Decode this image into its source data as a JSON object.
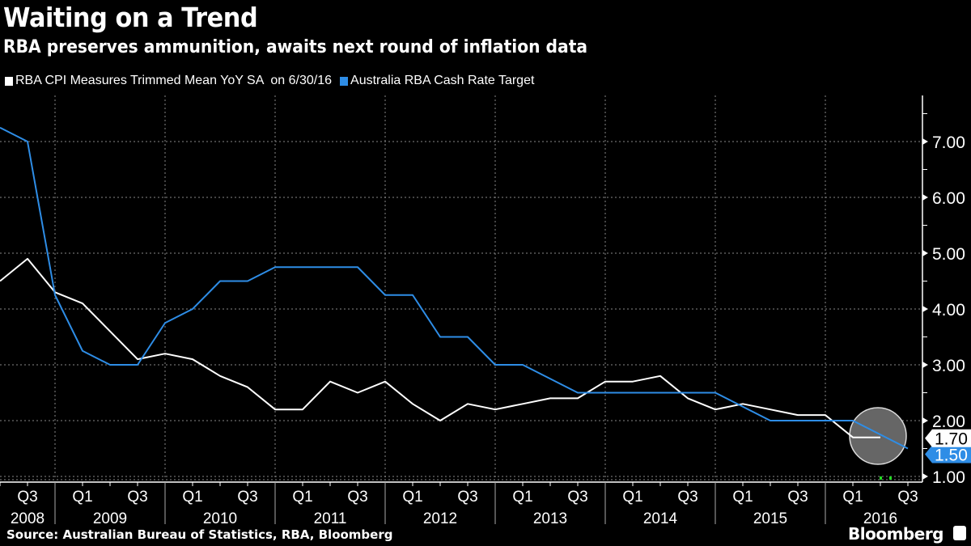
{
  "header": {
    "title": "Waiting on a Trend",
    "subtitle": "RBA preserves ammunition, awaits next round of inflation data"
  },
  "footer": {
    "source": "Source: Australian Bureau of Statistics, RBA, Bloomberg",
    "brand": "Bloomberg"
  },
  "chart_data": {
    "type": "line",
    "title": "Waiting on a Trend",
    "subtitle": "RBA preserves ammunition, awaits next round of inflation data",
    "xlabel": "",
    "ylabel": "",
    "ylim": [
      0.85,
      7.5
    ],
    "yticks": [
      "1.00",
      "2.00",
      "3.00",
      "4.00",
      "5.00",
      "6.00",
      "7.00"
    ],
    "grid": true,
    "legend_position": "top-left",
    "x_quarter_labels": [
      {
        "q": "Q3",
        "year": "2008"
      },
      {
        "q": "Q1",
        "year": "2009"
      },
      {
        "q": "Q3",
        "year": ""
      },
      {
        "q": "Q1",
        "year": "2010"
      },
      {
        "q": "Q3",
        "year": ""
      },
      {
        "q": "Q1",
        "year": "2011"
      },
      {
        "q": "Q3",
        "year": ""
      },
      {
        "q": "Q1",
        "year": "2012"
      },
      {
        "q": "Q3",
        "year": ""
      },
      {
        "q": "Q1",
        "year": "2013"
      },
      {
        "q": "Q3",
        "year": ""
      },
      {
        "q": "Q1",
        "year": "2014"
      },
      {
        "q": "Q3",
        "year": ""
      },
      {
        "q": "Q1",
        "year": "2015"
      },
      {
        "q": "Q3",
        "year": ""
      },
      {
        "q": "Q1",
        "year": "2016"
      },
      {
        "q": "Q3",
        "year": ""
      }
    ],
    "years": [
      "2008",
      "2009",
      "2010",
      "2011",
      "2012",
      "2013",
      "2014",
      "2015",
      "2016"
    ],
    "series": [
      {
        "name": "RBA CPI Measures Trimmed Mean YoY SA  on 6/30/16",
        "color": "#ffffff",
        "last_value_label": "1.70",
        "x_quarter_index": [
          0,
          1,
          2,
          3,
          4,
          5,
          6,
          7,
          8,
          9,
          10,
          11,
          12,
          13,
          14,
          15,
          16,
          17,
          18,
          19,
          20,
          21,
          22,
          23,
          24,
          25,
          26,
          27,
          28,
          29,
          30,
          31,
          32
        ],
        "values": [
          4.5,
          4.9,
          4.3,
          4.1,
          3.6,
          3.1,
          3.2,
          3.1,
          2.8,
          2.6,
          2.2,
          2.2,
          2.7,
          2.5,
          2.7,
          2.3,
          2.0,
          2.3,
          2.2,
          2.3,
          2.4,
          2.4,
          2.7,
          2.7,
          2.8,
          2.4,
          2.2,
          2.3,
          2.2,
          2.1,
          2.1,
          1.7,
          1.7
        ]
      },
      {
        "name": "Australia RBA Cash Rate Target",
        "color": "#2e8de6",
        "last_value_label": "1.50",
        "x_quarter_index": [
          0,
          1,
          2,
          3,
          4,
          5,
          6,
          7,
          8,
          9,
          10,
          11,
          12,
          13,
          14,
          15,
          16,
          17,
          18,
          19,
          20,
          21,
          22,
          23,
          24,
          25,
          26,
          27,
          28,
          29,
          30,
          31,
          32,
          33
        ],
        "values": [
          7.25,
          7.0,
          4.25,
          3.25,
          3.0,
          3.0,
          3.75,
          4.0,
          4.5,
          4.5,
          4.75,
          4.75,
          4.75,
          4.75,
          4.25,
          4.25,
          3.5,
          3.5,
          3.0,
          3.0,
          2.75,
          2.5,
          2.5,
          2.5,
          2.5,
          2.5,
          2.5,
          2.25,
          2.0,
          2.0,
          2.0,
          2.0,
          1.75,
          1.5
        ]
      }
    ],
    "annotations": [
      "highlight circle around latest values (mid-2016)"
    ]
  }
}
